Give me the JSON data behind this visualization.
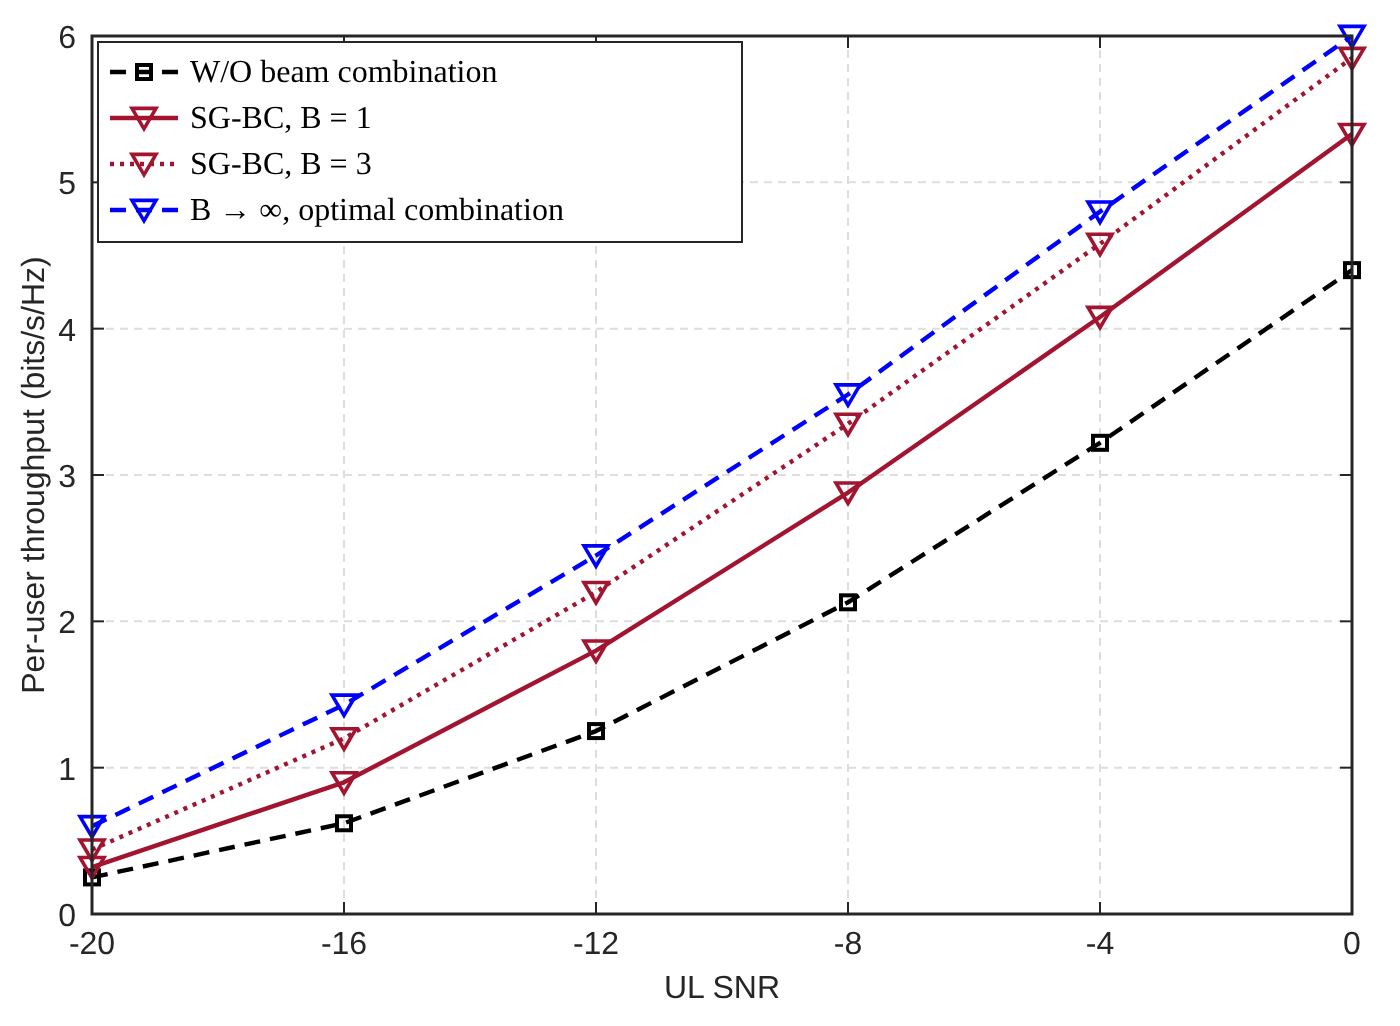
{
  "chart_data": {
    "type": "line",
    "xlabel": "UL SNR",
    "ylabel": "Per-user throughput (bits/s/Hz)",
    "x": [
      -20,
      -16,
      -12,
      -8,
      -4,
      0
    ],
    "xlim": [
      -20,
      0
    ],
    "xticks": [
      -20,
      -16,
      -12,
      -8,
      -4,
      0
    ],
    "ylim": [
      0,
      6
    ],
    "yticks": [
      0,
      1,
      2,
      3,
      4,
      5,
      6
    ],
    "grid": true,
    "legend": "top left",
    "series": [
      {
        "name": "W/O beam combination",
        "color": "#000000",
        "marker": "square",
        "line_style": "dashed",
        "values": [
          0.25,
          0.62,
          1.25,
          2.13,
          3.22,
          4.4
        ]
      },
      {
        "name": "SG-BC, B = 1",
        "color": "#a2142f",
        "marker": "triangle",
        "line_style": "solid",
        "values": [
          0.32,
          0.9,
          1.8,
          2.88,
          4.08,
          5.33
        ]
      },
      {
        "name": "SG-BC, B = 3",
        "color": "#a2142f",
        "marker": "triangle",
        "line_style": "dotted",
        "values": [
          0.44,
          1.2,
          2.2,
          3.35,
          4.58,
          5.85
        ]
      },
      {
        "name": "B → ∞, optimal combination",
        "color": "#0000ff",
        "marker": "triangle",
        "line_style": "dashed",
        "values": [
          0.6,
          1.43,
          2.45,
          3.55,
          4.8,
          6.0
        ]
      }
    ]
  }
}
